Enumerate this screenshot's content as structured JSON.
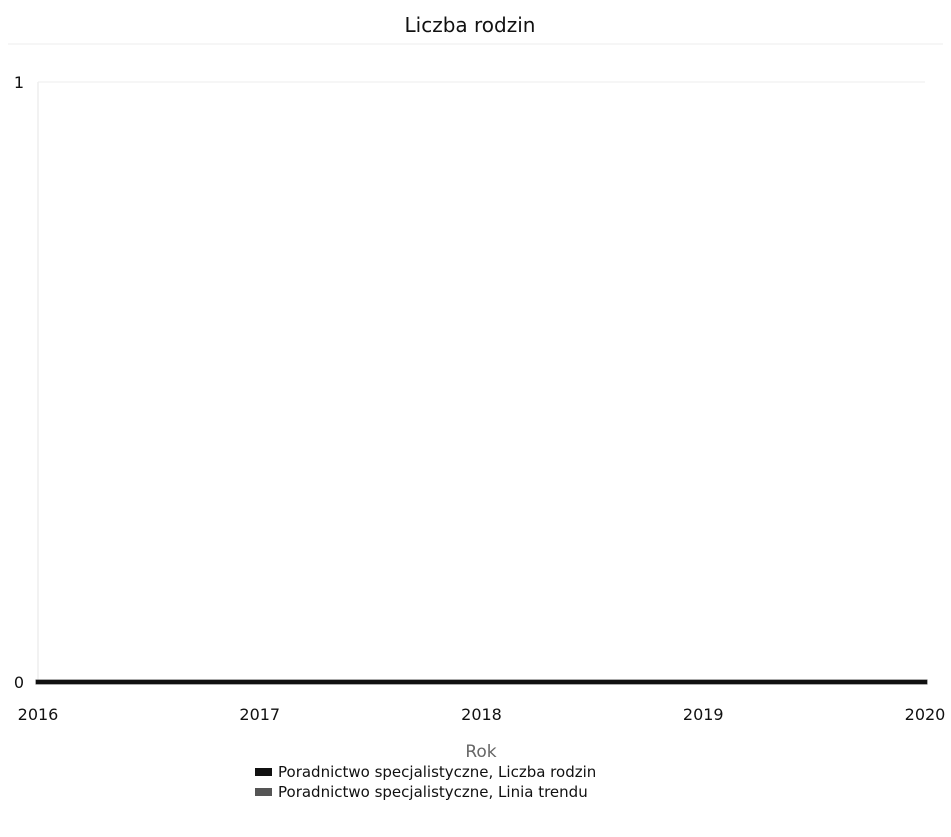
{
  "chart_data": {
    "type": "line",
    "title": "Liczba rodzin",
    "xlabel": "Rok",
    "ylabel": "",
    "x": [
      2016,
      2017,
      2018,
      2019,
      2020
    ],
    "x_tick_labels": [
      "2016",
      "2017",
      "2018",
      "2019",
      "2020"
    ],
    "y_tick_labels": [
      "0",
      "1"
    ],
    "ylim": [
      0,
      1
    ],
    "xlim": [
      2016,
      2020
    ],
    "grid": true,
    "legend_position": "bottom",
    "series": [
      {
        "name": "Poradnictwo specjalistyczne, Liczba rodzin",
        "values": [
          0,
          0,
          0,
          0,
          0
        ],
        "color": "#111111"
      },
      {
        "name": "Poradnictwo specjalistyczne, Linia trendu",
        "values": [
          0,
          0,
          0,
          0,
          0
        ],
        "color": "#555555"
      }
    ]
  }
}
